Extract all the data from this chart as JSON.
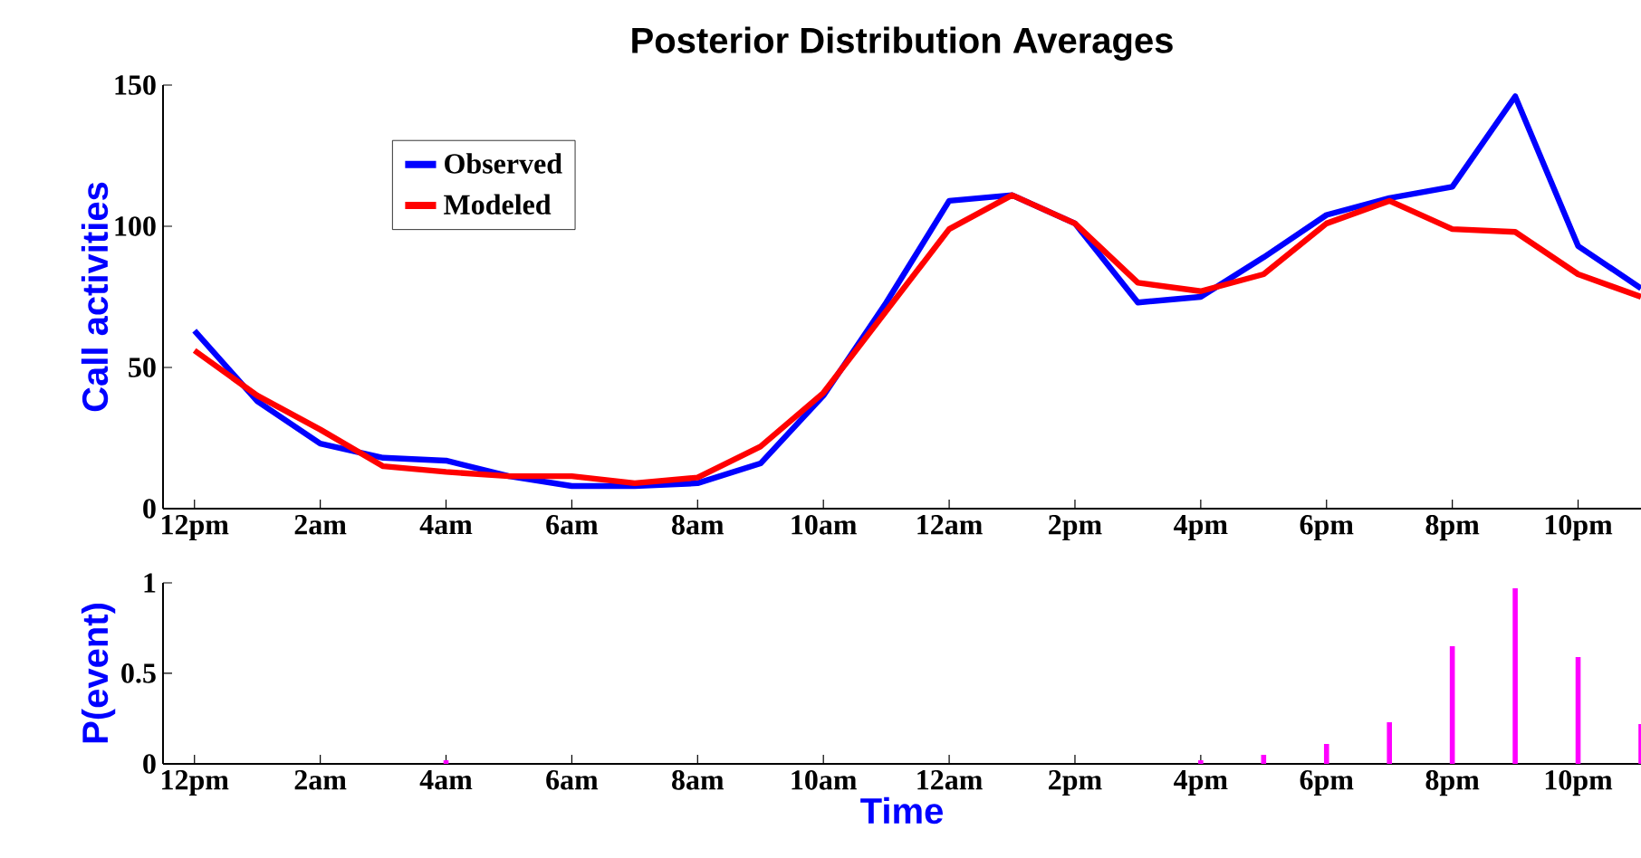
{
  "chart_data": [
    {
      "type": "line",
      "title": "Posterior Distribution Averages",
      "ylabel": "Call activities",
      "categories": [
        "12pm",
        null,
        "2am",
        null,
        "4am",
        null,
        "6am",
        null,
        "8am",
        null,
        "10am",
        null,
        "12am",
        null,
        "2pm",
        null,
        "4pm",
        null,
        "6pm",
        null,
        "8pm",
        null,
        "10pm",
        null
      ],
      "series": [
        {
          "name": "Observed",
          "color": "#0000ff",
          "values": [
            63,
            38,
            23,
            18,
            17,
            11.5,
            8,
            8,
            9,
            16,
            40,
            73,
            109,
            111,
            101,
            73,
            75,
            89,
            104,
            110,
            114,
            146,
            93,
            78
          ]
        },
        {
          "name": "Modeled",
          "color": "#ff0000",
          "values": [
            56,
            40,
            28,
            15,
            13,
            11.5,
            11.5,
            9,
            11,
            22,
            41,
            70,
            99,
            111,
            101,
            80,
            77,
            83,
            101,
            109,
            99,
            98,
            83,
            75
          ]
        }
      ],
      "ylim": [
        0,
        150
      ],
      "yticks": [
        0,
        50,
        100,
        150
      ],
      "legend": "top left",
      "grid": false
    },
    {
      "type": "bar",
      "xlabel": "Time",
      "ylabel": "P(event)",
      "categories": [
        "12pm",
        null,
        "2am",
        null,
        "4am",
        null,
        "6am",
        null,
        "8am",
        null,
        "10am",
        null,
        "12am",
        null,
        "2pm",
        null,
        "4pm",
        null,
        "6pm",
        null,
        "8pm",
        null,
        "10pm",
        null
      ],
      "values": [
        0,
        0,
        0,
        0,
        0.02,
        0,
        0,
        0,
        0,
        0,
        0,
        0,
        0,
        0,
        0,
        0,
        0.02,
        0.05,
        0.11,
        0.23,
        0.65,
        0.97,
        0.59,
        0.22
      ],
      "color": "#ff00ff",
      "ylim": [
        0,
        1
      ],
      "yticks": [
        0,
        0.5,
        1
      ],
      "grid": false
    }
  ]
}
